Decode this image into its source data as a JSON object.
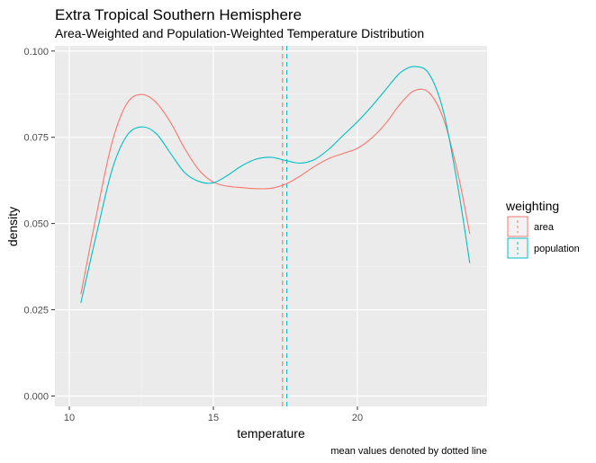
{
  "chart_data": {
    "type": "line",
    "title": "Extra Tropical Southern Hemisphere",
    "subtitle": "Area-Weighted and Population-Weighted Temperature Distribution",
    "xlabel": "temperature",
    "ylabel": "density",
    "caption": "mean values denoted by dotted line",
    "xlim": [
      9.5,
      24.5
    ],
    "ylim": [
      -0.003,
      0.1015
    ],
    "x_ticks": [
      10,
      15,
      20
    ],
    "x_tick_labels": [
      "10",
      "15",
      "20"
    ],
    "y_ticks": [
      0.0,
      0.025,
      0.05,
      0.075,
      0.1
    ],
    "y_tick_labels": [
      "0.000",
      "0.025",
      "0.050",
      "0.075",
      "0.100"
    ],
    "grid": true,
    "legend": {
      "title": "weighting",
      "position": "right"
    },
    "series": [
      {
        "name": "area",
        "color": "#F8766D",
        "mean": 17.4,
        "x": [
          10.4,
          11.0,
          11.5,
          12.0,
          12.5,
          13.0,
          13.5,
          14.0,
          14.5,
          15.0,
          15.5,
          16.0,
          16.5,
          17.0,
          17.5,
          18.0,
          18.5,
          19.0,
          19.5,
          20.0,
          20.5,
          21.0,
          21.5,
          22.0,
          22.5,
          23.0,
          23.5,
          23.9
        ],
        "y": [
          0.0295,
          0.055,
          0.074,
          0.0848,
          0.0874,
          0.0852,
          0.0795,
          0.0718,
          0.0655,
          0.062,
          0.0608,
          0.0604,
          0.0601,
          0.0602,
          0.0614,
          0.0637,
          0.0665,
          0.0688,
          0.0703,
          0.0718,
          0.0748,
          0.0792,
          0.0848,
          0.0886,
          0.0878,
          0.08,
          0.064,
          0.047
        ]
      },
      {
        "name": "population",
        "color": "#00BFC4",
        "mean": 17.55,
        "x": [
          10.4,
          11.0,
          11.5,
          12.0,
          12.5,
          13.0,
          13.5,
          14.0,
          14.5,
          15.0,
          15.5,
          16.0,
          16.5,
          17.0,
          17.5,
          18.0,
          18.5,
          19.0,
          19.5,
          20.0,
          20.5,
          21.0,
          21.5,
          22.0,
          22.5,
          23.0,
          23.5,
          23.9
        ],
        "y": [
          0.027,
          0.049,
          0.066,
          0.0755,
          0.078,
          0.0762,
          0.0705,
          0.0648,
          0.0622,
          0.0618,
          0.064,
          0.0668,
          0.0687,
          0.0692,
          0.0683,
          0.0675,
          0.0685,
          0.0715,
          0.0755,
          0.0795,
          0.084,
          0.089,
          0.0938,
          0.0955,
          0.0932,
          0.082,
          0.06,
          0.0385
        ]
      }
    ]
  }
}
